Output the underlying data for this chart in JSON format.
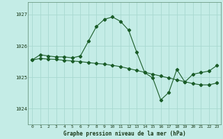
{
  "background_color": "#c4ece6",
  "grid_color": "#a8d8d0",
  "line_color": "#1a5c28",
  "title": "Graphe pression niveau de la mer (hPa)",
  "ylabel_ticks": [
    1024,
    1025,
    1026,
    1027
  ],
  "xlim": [
    -0.5,
    23.5
  ],
  "ylim": [
    1023.5,
    1027.4
  ],
  "hours": [
    0,
    1,
    2,
    3,
    4,
    5,
    6,
    7,
    8,
    9,
    10,
    11,
    12,
    13,
    14,
    15,
    16,
    17,
    18,
    19,
    20,
    21,
    22,
    23
  ],
  "series1": [
    1025.55,
    1025.72,
    1025.68,
    1025.65,
    1025.65,
    1025.62,
    1025.68,
    1026.15,
    1026.62,
    1026.85,
    1026.92,
    1026.78,
    1026.5,
    1025.8,
    1025.15,
    1024.98,
    1024.28,
    1024.52,
    1025.25,
    1024.85,
    1025.1,
    1025.15,
    1025.2,
    1025.38
  ],
  "series2": [
    1025.55,
    1025.6,
    1025.58,
    1025.57,
    1025.54,
    1025.52,
    1025.5,
    1025.47,
    1025.44,
    1025.42,
    1025.38,
    1025.34,
    1025.28,
    1025.22,
    1025.16,
    1025.1,
    1025.04,
    1024.98,
    1024.92,
    1024.86,
    1024.8,
    1024.76,
    1024.76,
    1024.82
  ]
}
